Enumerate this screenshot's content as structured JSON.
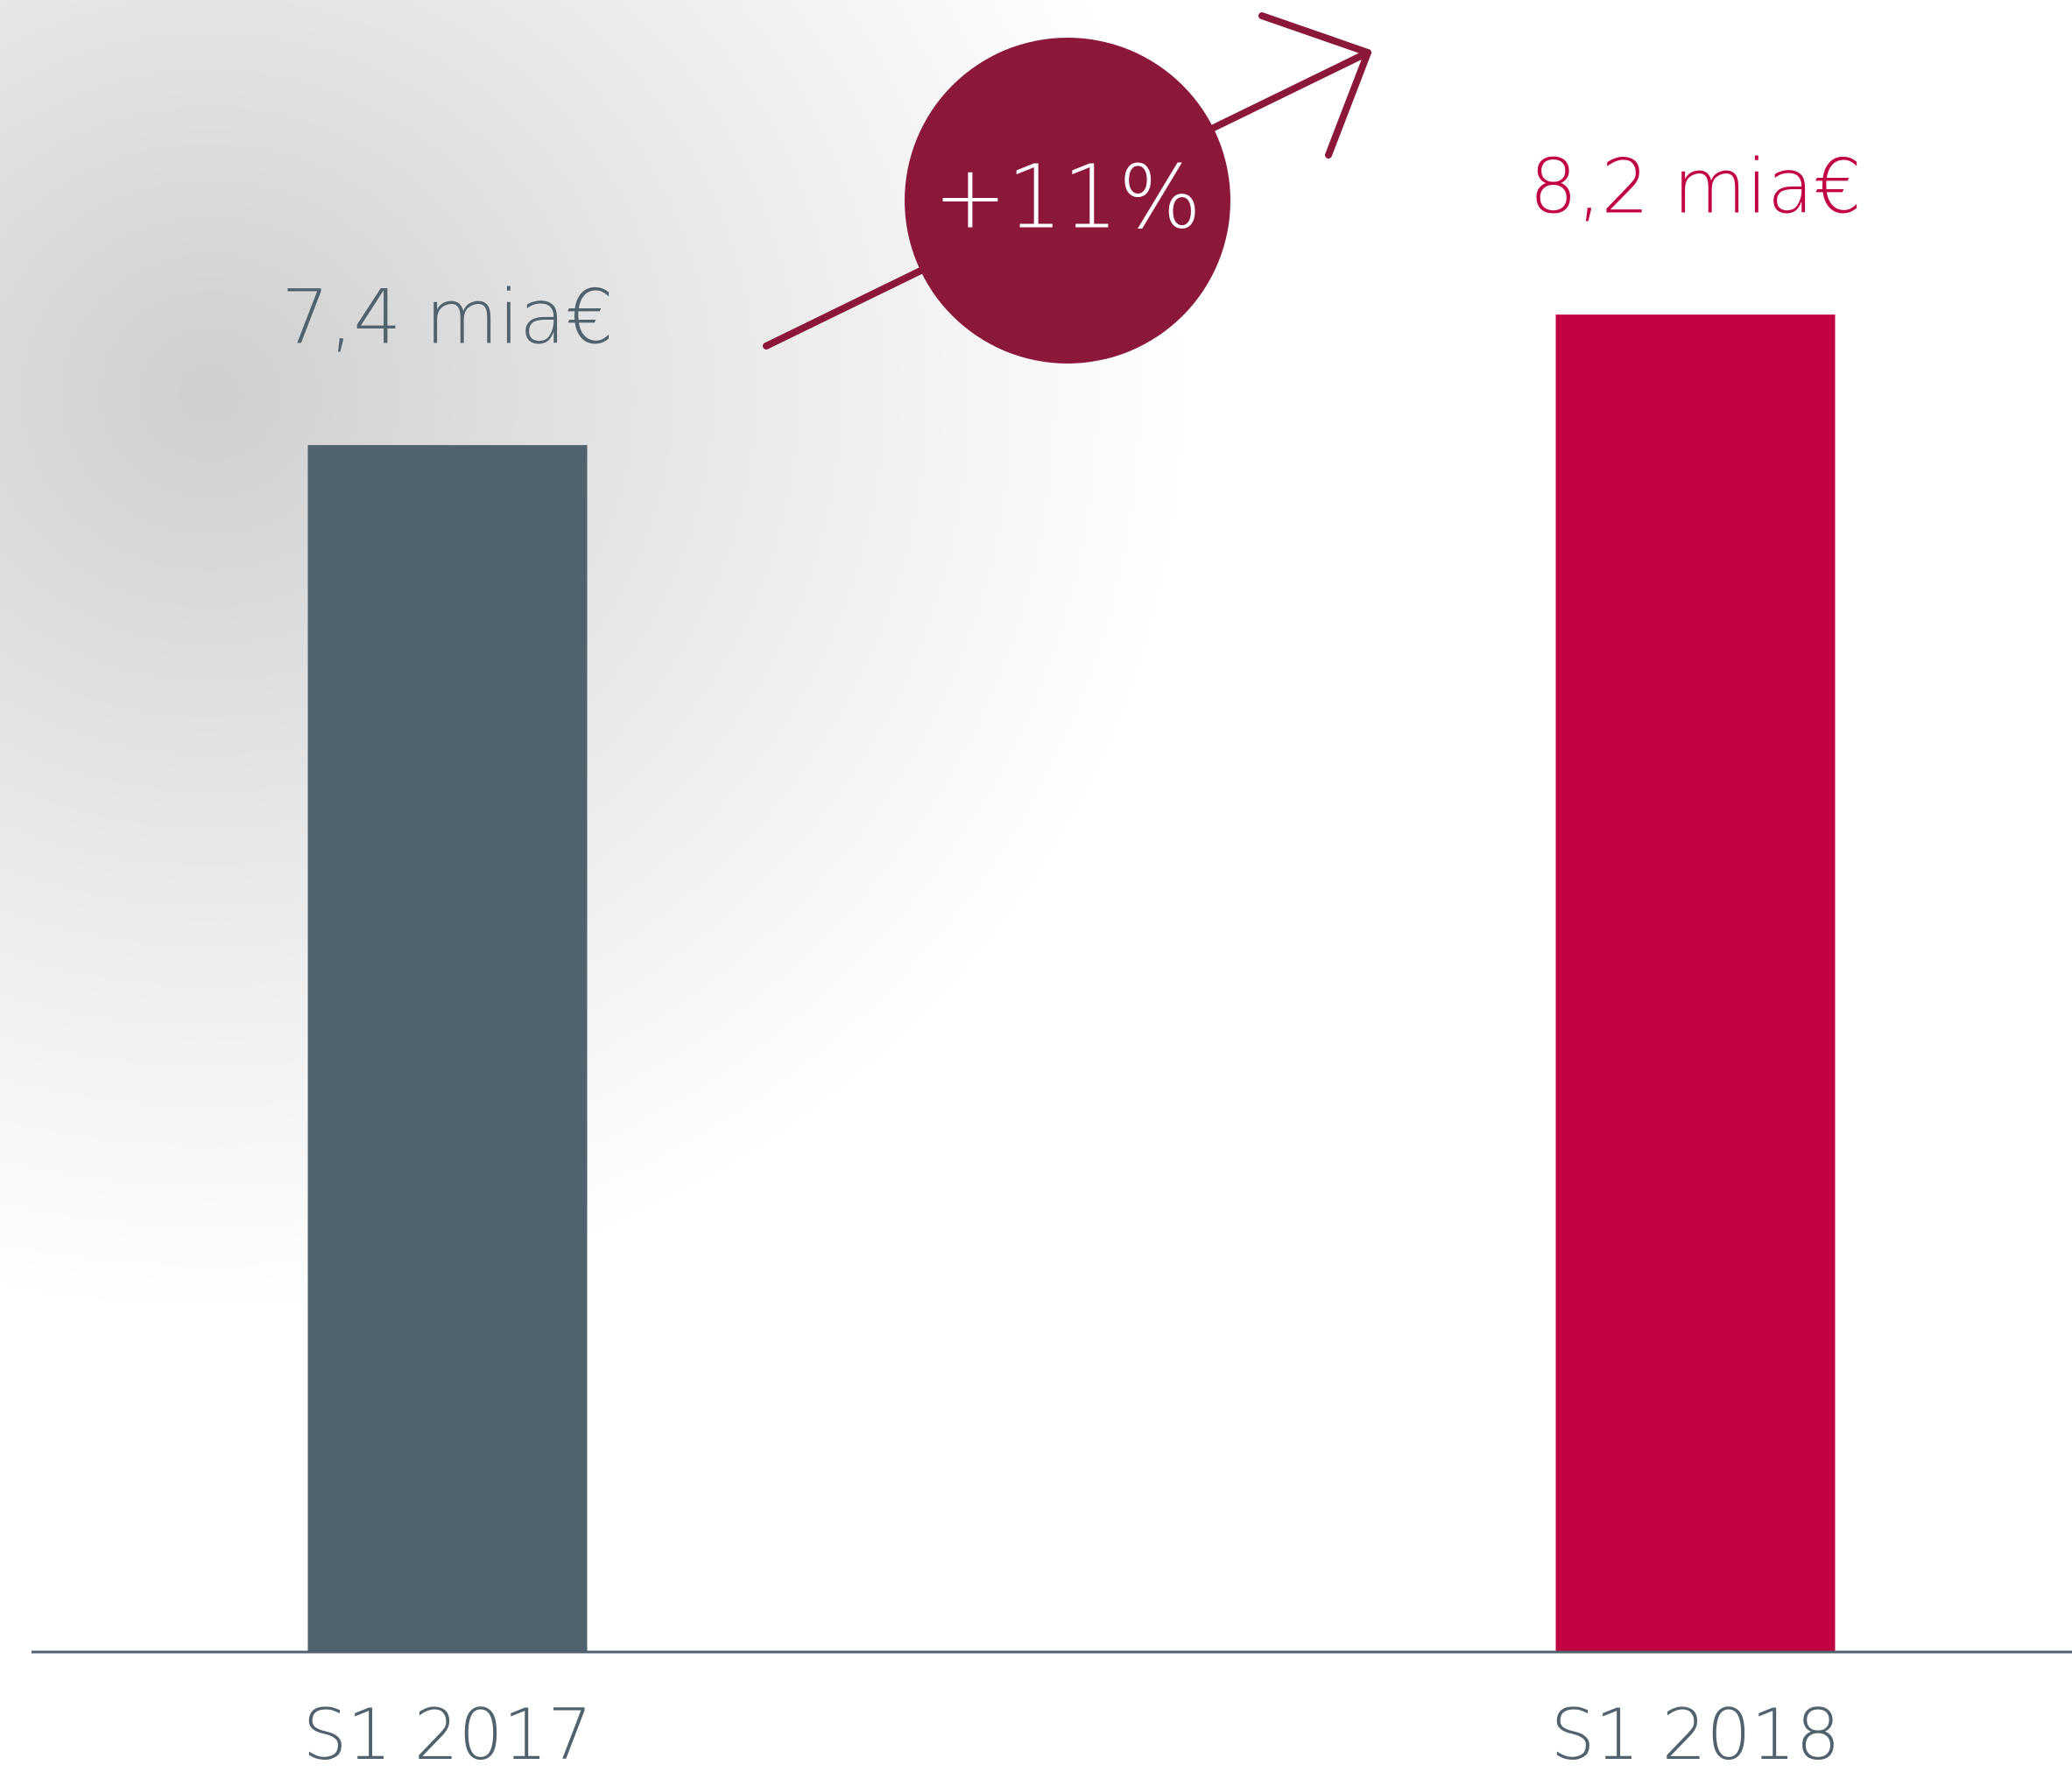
{
  "chart_data": {
    "type": "bar",
    "categories": [
      "S1 2017",
      "S1 2018"
    ],
    "values": [
      7.4,
      8.2
    ],
    "value_labels": [
      "7,4 mia€",
      "8,2 mia€"
    ],
    "colors": [
      "#50626e",
      "#c20044"
    ],
    "annotation": "+11%",
    "annotation_color": "#8c1839",
    "axis_color": "#50626e"
  }
}
